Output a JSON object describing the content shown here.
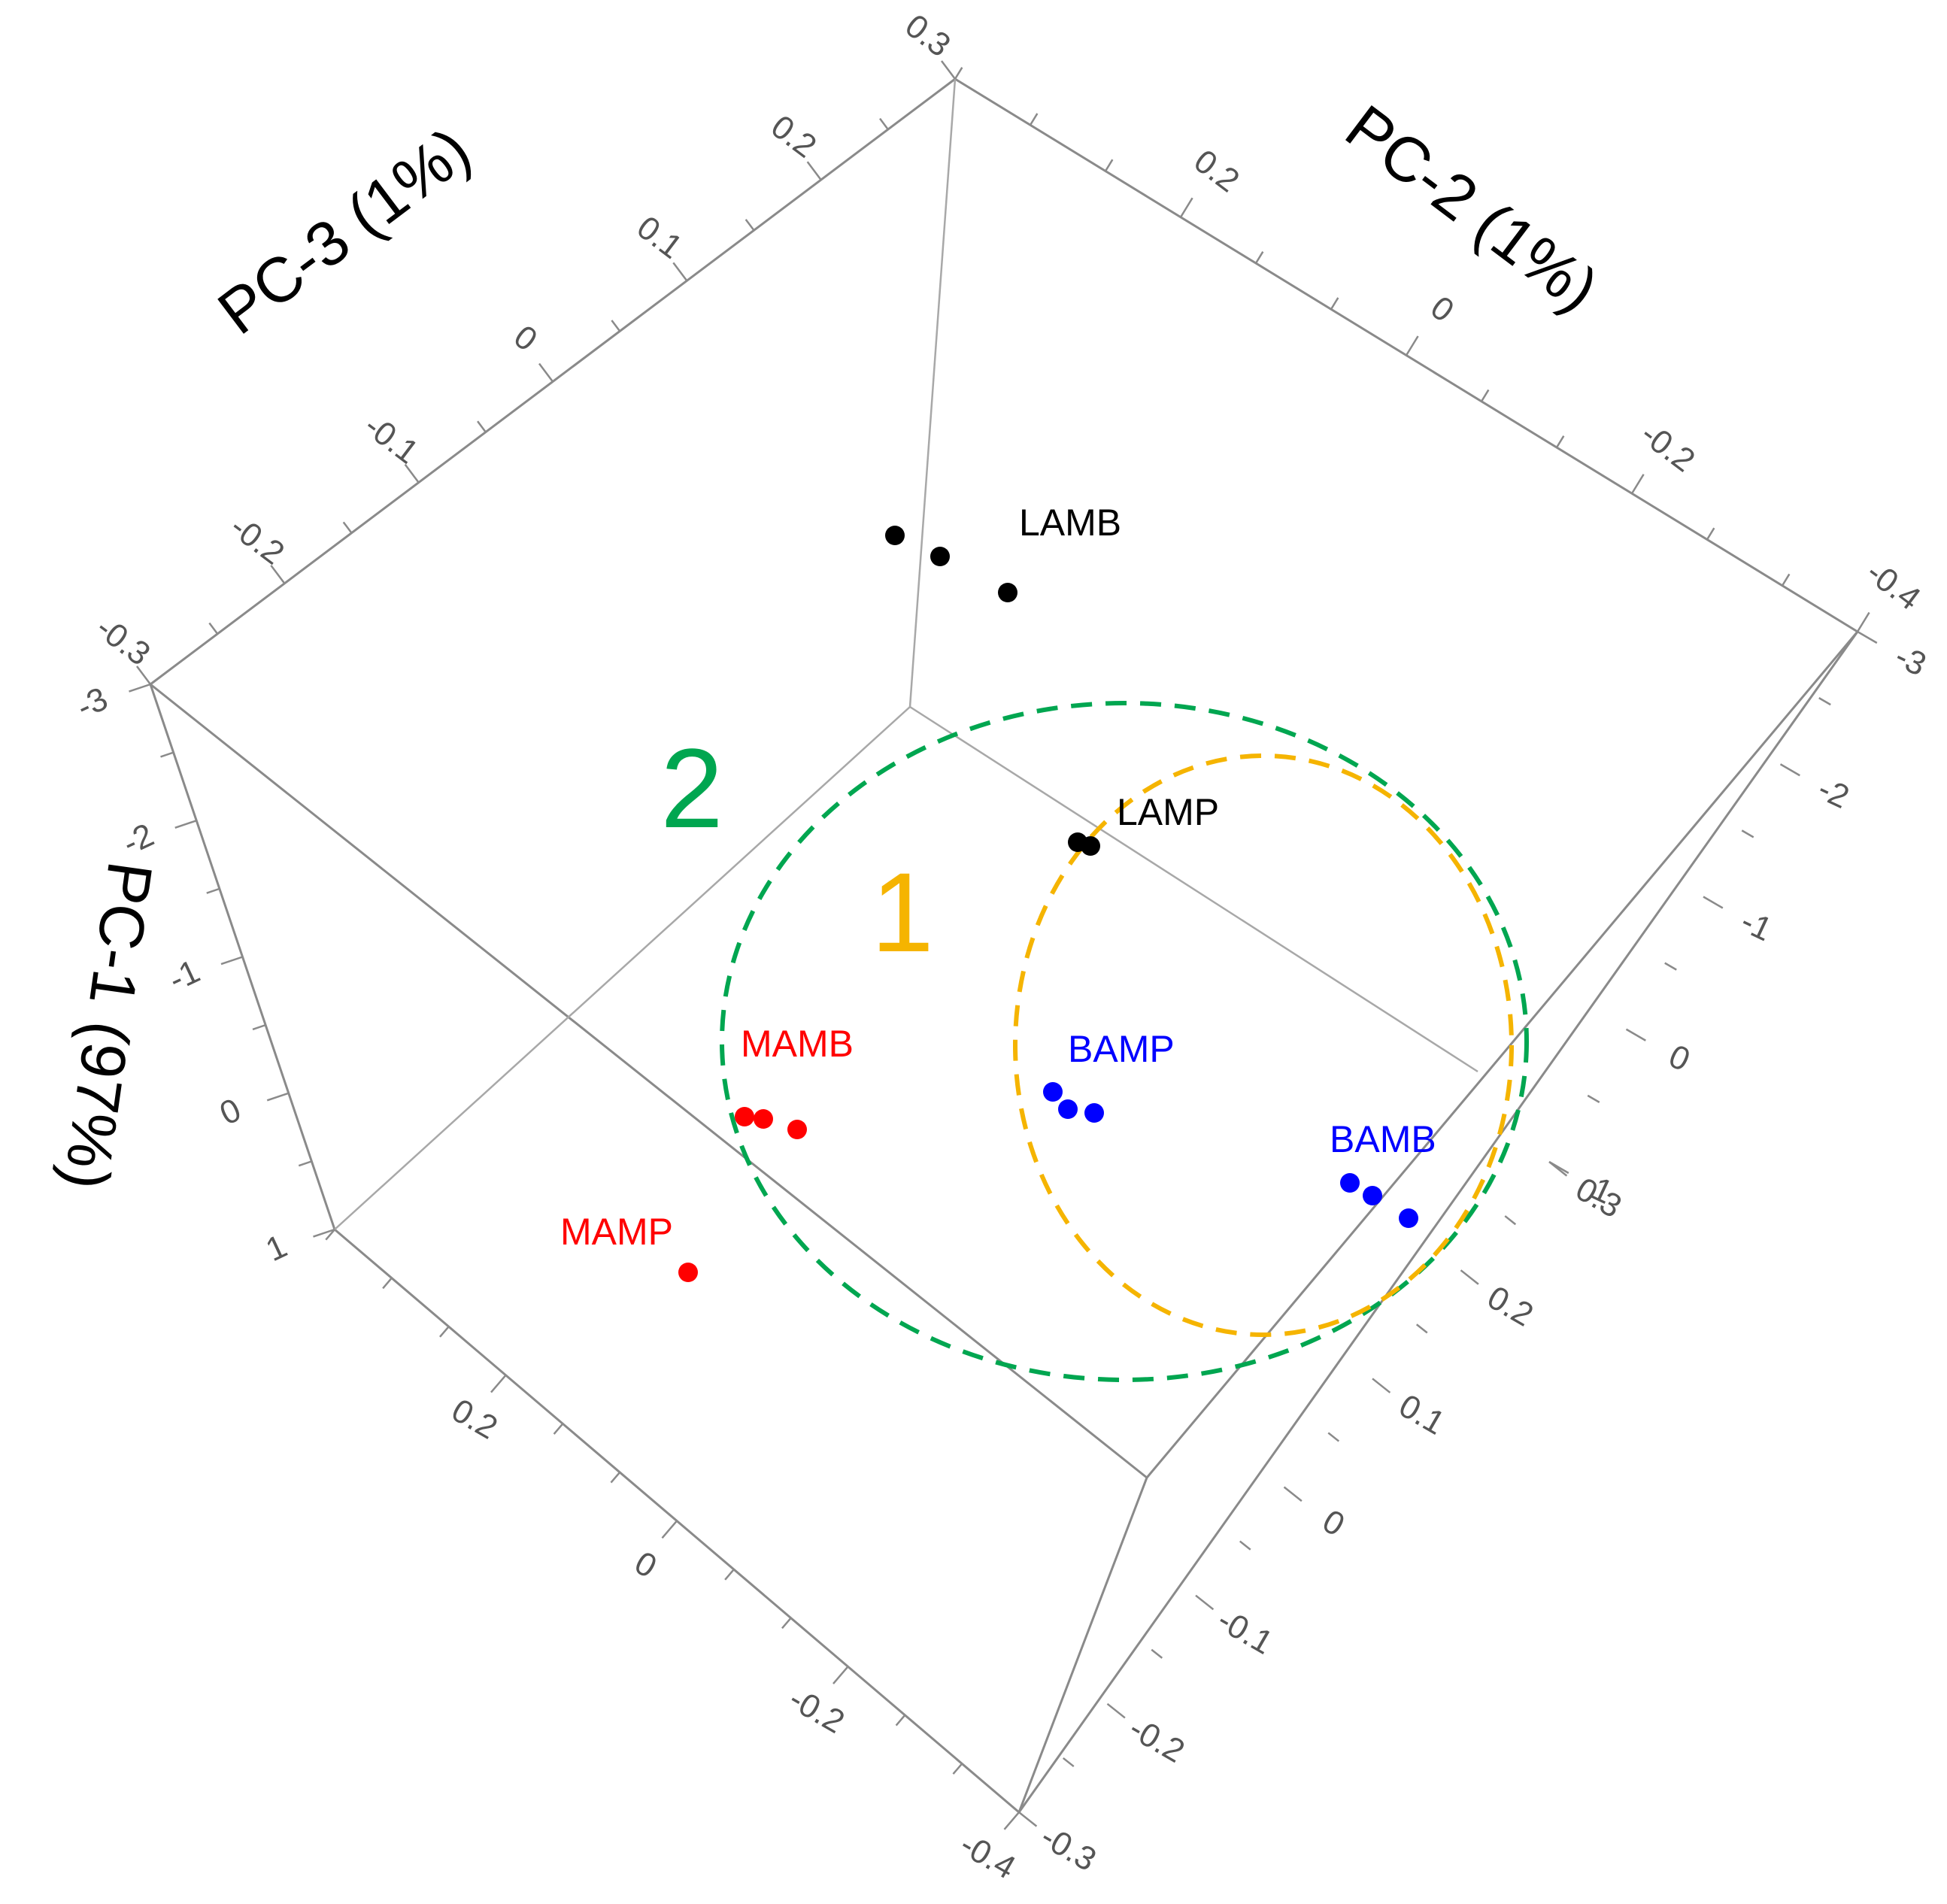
{
  "chart_data": {
    "type": "scatter",
    "projection": "3d",
    "axes": {
      "pc1": {
        "title": "PC-1 (97%)",
        "ticks": [
          "-3",
          "-2",
          "-1",
          "0",
          "1"
        ]
      },
      "pc2": {
        "title": "PC-2 (1%)",
        "ticks": [
          "0.2",
          "0",
          "-0.2",
          "-0.4"
        ]
      },
      "pc3": {
        "title": "PC-3 (1%)",
        "ticks": [
          "0.3",
          "0.2",
          "0.1",
          "0",
          "-0.1",
          "-0.2",
          "-0.3"
        ]
      },
      "right_pc1_ticks": [
        "-3",
        "-2",
        "-1",
        "0",
        "1"
      ],
      "right_pc3_ticks": [
        "0.3",
        "0.2",
        "0.1",
        "0",
        "-0.1",
        "-0.2",
        "-0.3"
      ],
      "bottom_pc2_ticks": [
        "0.2",
        "0",
        "-0.2",
        "-0.4"
      ]
    },
    "series": [
      {
        "name": "LAMB",
        "color": "#000000",
        "count": 3
      },
      {
        "name": "LAMP",
        "color": "#000000",
        "count": 2
      },
      {
        "name": "MAMB",
        "color": "#ff0000",
        "count": 3
      },
      {
        "name": "MAMP",
        "color": "#ff0000",
        "count": 1
      },
      {
        "name": "BAMP",
        "color": "#0000ff",
        "count": 3
      },
      {
        "name": "BAMB",
        "color": "#0000ff",
        "count": 3
      }
    ],
    "clusters": [
      {
        "label": "1",
        "color": "#f5b400",
        "members": [
          "LAMP",
          "BAMP",
          "BAMB"
        ]
      },
      {
        "label": "2",
        "color": "#00a650",
        "members": [
          "LAMP",
          "MAMB",
          "BAMP",
          "BAMB"
        ]
      }
    ],
    "grid": false,
    "legend": "none"
  }
}
